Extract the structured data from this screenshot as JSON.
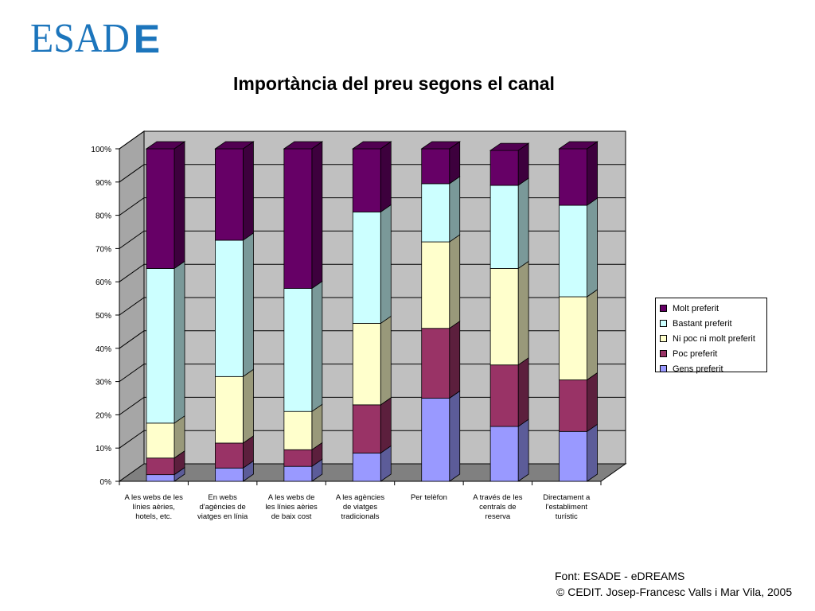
{
  "logo": {
    "text_main": "ESAD",
    "text_last": "E",
    "color": "#1c75bc"
  },
  "footer": {
    "source": "Font: ESADE - eDREAMS",
    "copyright": "© CEDIT. Josep-Francesc Valls i Mar Vila, 2005"
  },
  "chart_data": {
    "type": "bar",
    "stacked": true,
    "percent_stacked": true,
    "three_d": true,
    "title": "Importància del preu segons el canal",
    "xlabel": "",
    "ylabel": "",
    "ylim": [
      0,
      100
    ],
    "yticks": [
      "0%",
      "10%",
      "20%",
      "30%",
      "40%",
      "50%",
      "60%",
      "70%",
      "80%",
      "90%",
      "100%"
    ],
    "grid": true,
    "legend_position": "right",
    "categories": [
      "A les webs de les\nlínies aèries,\nhotels, etc.",
      "En webs\nd'agències de\nviatges en línia",
      "A les webs de\nles línies aèries\nde baix cost",
      "A les agències\nde viatges\ntradicionals",
      "Per telèfon",
      "A través de les\ncentrals de\nreserva",
      "Directament a\nl'establiment\nturístic"
    ],
    "series": [
      {
        "name": "Gens preferit",
        "color": "#9999ff",
        "values": [
          2,
          4,
          4.5,
          8.5,
          25,
          16.5,
          15
        ]
      },
      {
        "name": "Poc preferit",
        "color": "#993366",
        "values": [
          5,
          7.5,
          5,
          14.5,
          21,
          18.5,
          15.5
        ]
      },
      {
        "name": "Ni poc ni molt preferit",
        "color": "#ffffcc",
        "values": [
          10.5,
          20,
          11.5,
          24.5,
          26,
          29,
          25
        ]
      },
      {
        "name": "Bastant preferit",
        "color": "#ccffff",
        "values": [
          46.5,
          41,
          37,
          33.5,
          17.5,
          25,
          27.5
        ]
      },
      {
        "name": "Molt preferit",
        "color": "#660066",
        "values": [
          36,
          27.5,
          42,
          19,
          10.5,
          10.5,
          17
        ]
      }
    ]
  }
}
